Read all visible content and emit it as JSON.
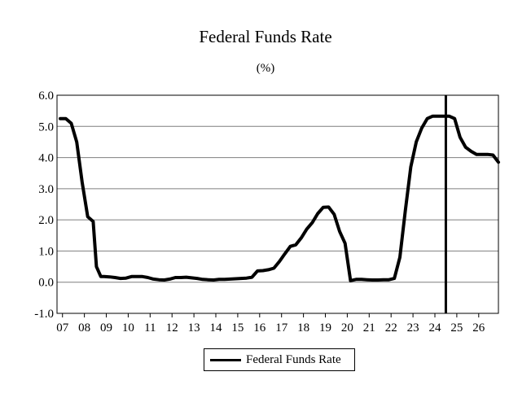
{
  "chart_data": {
    "type": "line",
    "title": "Federal Funds Rate",
    "subtitle": "(%)",
    "ylim": [
      -1.0,
      6.0
    ],
    "y_ticks": [
      "-1.0",
      "0.0",
      "1.0",
      "2.0",
      "3.0",
      "4.0",
      "5.0",
      "6.0"
    ],
    "xlim": [
      2006.75,
      2026.9
    ],
    "x_ticks": [
      "07",
      "08",
      "09",
      "10",
      "11",
      "12",
      "13",
      "14",
      "15",
      "16",
      "17",
      "18",
      "19",
      "20",
      "21",
      "22",
      "23",
      "24",
      "25",
      "26"
    ],
    "grid": true,
    "vertical_marker_x": 2024.5,
    "legend": "bottom",
    "series": [
      {
        "name": "Federal Funds Rate",
        "color": "#000000",
        "points": [
          [
            2007.0,
            5.25
          ],
          [
            2007.25,
            5.25
          ],
          [
            2007.5,
            5.1
          ],
          [
            2007.75,
            4.5
          ],
          [
            2008.0,
            3.2
          ],
          [
            2008.25,
            2.1
          ],
          [
            2008.5,
            1.95
          ],
          [
            2008.65,
            0.5
          ],
          [
            2008.85,
            0.18
          ],
          [
            2009.0,
            0.18
          ],
          [
            2009.25,
            0.17
          ],
          [
            2009.5,
            0.15
          ],
          [
            2009.75,
            0.12
          ],
          [
            2010.0,
            0.13
          ],
          [
            2010.25,
            0.18
          ],
          [
            2010.5,
            0.18
          ],
          [
            2010.75,
            0.18
          ],
          [
            2011.0,
            0.15
          ],
          [
            2011.25,
            0.1
          ],
          [
            2011.5,
            0.08
          ],
          [
            2011.75,
            0.07
          ],
          [
            2012.0,
            0.1
          ],
          [
            2012.25,
            0.15
          ],
          [
            2012.5,
            0.15
          ],
          [
            2012.75,
            0.16
          ],
          [
            2013.0,
            0.14
          ],
          [
            2013.25,
            0.12
          ],
          [
            2013.5,
            0.09
          ],
          [
            2013.75,
            0.08
          ],
          [
            2014.0,
            0.07
          ],
          [
            2014.25,
            0.09
          ],
          [
            2014.5,
            0.09
          ],
          [
            2014.75,
            0.1
          ],
          [
            2015.0,
            0.11
          ],
          [
            2015.25,
            0.12
          ],
          [
            2015.5,
            0.13
          ],
          [
            2015.75,
            0.16
          ],
          [
            2016.0,
            0.36
          ],
          [
            2016.25,
            0.37
          ],
          [
            2016.5,
            0.4
          ],
          [
            2016.75,
            0.45
          ],
          [
            2017.0,
            0.66
          ],
          [
            2017.25,
            0.91
          ],
          [
            2017.5,
            1.15
          ],
          [
            2017.75,
            1.2
          ],
          [
            2018.0,
            1.42
          ],
          [
            2018.25,
            1.7
          ],
          [
            2018.5,
            1.91
          ],
          [
            2018.75,
            2.2
          ],
          [
            2019.0,
            2.4
          ],
          [
            2019.25,
            2.41
          ],
          [
            2019.5,
            2.18
          ],
          [
            2019.75,
            1.63
          ],
          [
            2020.0,
            1.25
          ],
          [
            2020.25,
            0.05
          ],
          [
            2020.5,
            0.09
          ],
          [
            2020.75,
            0.09
          ],
          [
            2021.0,
            0.08
          ],
          [
            2021.25,
            0.07
          ],
          [
            2021.5,
            0.07
          ],
          [
            2021.75,
            0.08
          ],
          [
            2022.0,
            0.08
          ],
          [
            2022.25,
            0.12
          ],
          [
            2022.5,
            0.8
          ],
          [
            2022.75,
            2.3
          ],
          [
            2023.0,
            3.7
          ],
          [
            2023.25,
            4.5
          ],
          [
            2023.5,
            4.95
          ],
          [
            2023.75,
            5.25
          ],
          [
            2024.0,
            5.33
          ],
          [
            2024.25,
            5.33
          ],
          [
            2024.5,
            5.33
          ],
          [
            2024.75,
            5.33
          ],
          [
            2025.0,
            5.25
          ],
          [
            2025.25,
            4.65
          ],
          [
            2025.5,
            4.33
          ],
          [
            2025.75,
            4.2
          ],
          [
            2026.0,
            4.1
          ],
          [
            2026.25,
            4.1
          ],
          [
            2026.5,
            4.1
          ],
          [
            2026.75,
            4.08
          ],
          [
            2027.0,
            3.85
          ],
          [
            2027.25,
            3.6
          ],
          [
            2027.5,
            3.35
          ]
        ]
      }
    ]
  }
}
